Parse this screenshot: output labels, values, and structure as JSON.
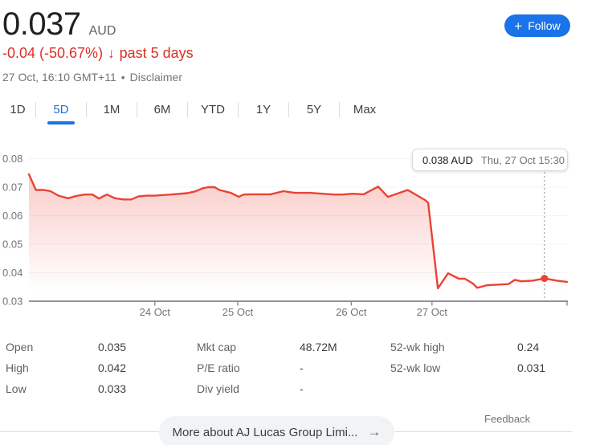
{
  "header": {
    "price": "0.037",
    "currency": "AUD",
    "change": "-0.04 (-50.67%)",
    "change_arrow": "↓",
    "change_period": "past 5 days",
    "timestamp": "27 Oct, 16:10 GMT+11",
    "separator": "•",
    "disclaimer": "Disclaimer",
    "follow": {
      "plus": "+",
      "label": "Follow"
    },
    "colors": {
      "accent_blue": "#1a73e8",
      "negative_red": "#d93025"
    }
  },
  "tabs": {
    "items": [
      {
        "label": "1D",
        "active": false
      },
      {
        "label": "5D",
        "active": true
      },
      {
        "label": "1M",
        "active": false
      },
      {
        "label": "6M",
        "active": false
      },
      {
        "label": "YTD",
        "active": false
      },
      {
        "label": "1Y",
        "active": false
      },
      {
        "label": "5Y",
        "active": false
      },
      {
        "label": "Max",
        "active": false
      }
    ]
  },
  "chart_data": {
    "type": "area",
    "title": "5-day price chart",
    "currency": "AUD",
    "ylim": [
      0.03,
      0.08
    ],
    "ytick_labels": [
      "0.08",
      "0.07",
      "0.06",
      "0.05",
      "0.04",
      "0.03"
    ],
    "yticks": [
      0.08,
      0.07,
      0.06,
      0.05,
      0.04,
      0.03
    ],
    "grid": true,
    "xticks": [
      {
        "label": "24 Oct",
        "t": 0.234
      },
      {
        "label": "25 Oct",
        "t": 0.388
      },
      {
        "label": "26 Oct",
        "t": 0.599
      },
      {
        "label": "27 Oct",
        "t": 0.749
      },
      {
        "label": "",
        "t": 1.0
      }
    ],
    "line_color": "#ea4335",
    "axis_color": "#80868b",
    "gridline_color": "#f1f3f4",
    "marker": {
      "t": 0.958,
      "price": 0.038
    },
    "tooltip": {
      "value": "0.038 AUD",
      "time": "Thu, 27 Oct 15:30"
    },
    "series": [
      {
        "name": "price",
        "points": [
          [
            0.0,
            0.0745
          ],
          [
            0.013,
            0.069
          ],
          [
            0.028,
            0.069
          ],
          [
            0.04,
            0.0686
          ],
          [
            0.055,
            0.067
          ],
          [
            0.073,
            0.0661
          ],
          [
            0.088,
            0.0669
          ],
          [
            0.103,
            0.0674
          ],
          [
            0.118,
            0.0674
          ],
          [
            0.13,
            0.066
          ],
          [
            0.145,
            0.0674
          ],
          [
            0.16,
            0.0661
          ],
          [
            0.175,
            0.0657
          ],
          [
            0.19,
            0.0657
          ],
          [
            0.204,
            0.0668
          ],
          [
            0.219,
            0.067
          ],
          [
            0.234,
            0.067
          ],
          [
            0.264,
            0.0674
          ],
          [
            0.294,
            0.0679
          ],
          [
            0.309,
            0.0685
          ],
          [
            0.324,
            0.0697
          ],
          [
            0.334,
            0.07
          ],
          [
            0.345,
            0.07
          ],
          [
            0.354,
            0.069
          ],
          [
            0.375,
            0.068
          ],
          [
            0.39,
            0.0666
          ],
          [
            0.399,
            0.0674
          ],
          [
            0.413,
            0.0675
          ],
          [
            0.449,
            0.0675
          ],
          [
            0.473,
            0.0686
          ],
          [
            0.494,
            0.068
          ],
          [
            0.522,
            0.068
          ],
          [
            0.567,
            0.0674
          ],
          [
            0.582,
            0.0674
          ],
          [
            0.601,
            0.0677
          ],
          [
            0.622,
            0.0675
          ],
          [
            0.649,
            0.0702
          ],
          [
            0.667,
            0.0666
          ],
          [
            0.704,
            0.069
          ],
          [
            0.736,
            0.0655
          ],
          [
            0.742,
            0.0645
          ],
          [
            0.76,
            0.0345
          ],
          [
            0.779,
            0.0398
          ],
          [
            0.799,
            0.0379
          ],
          [
            0.81,
            0.0379
          ],
          [
            0.825,
            0.0362
          ],
          [
            0.833,
            0.0347
          ],
          [
            0.851,
            0.0356
          ],
          [
            0.87,
            0.0358
          ],
          [
            0.891,
            0.036
          ],
          [
            0.903,
            0.0375
          ],
          [
            0.915,
            0.037
          ],
          [
            0.936,
            0.0372
          ],
          [
            0.958,
            0.038
          ],
          [
            0.981,
            0.0372
          ],
          [
            1.0,
            0.0368
          ]
        ]
      }
    ]
  },
  "stats": {
    "rows": [
      [
        {
          "label": "Open",
          "value": "0.035"
        },
        {
          "label": "Mkt cap",
          "value": "48.72M"
        },
        {
          "label": "52-wk high",
          "value": "0.24"
        }
      ],
      [
        {
          "label": "High",
          "value": "0.042"
        },
        {
          "label": "P/E ratio",
          "value": "-"
        },
        {
          "label": "52-wk low",
          "value": "0.031"
        }
      ],
      [
        {
          "label": "Low",
          "value": "0.033"
        },
        {
          "label": "Div yield",
          "value": "-"
        },
        {
          "label": "",
          "value": ""
        }
      ]
    ]
  },
  "footer": {
    "feedback": "Feedback",
    "more_label": "More about AJ Lucas Group Limi...",
    "more_arrow": "→"
  }
}
